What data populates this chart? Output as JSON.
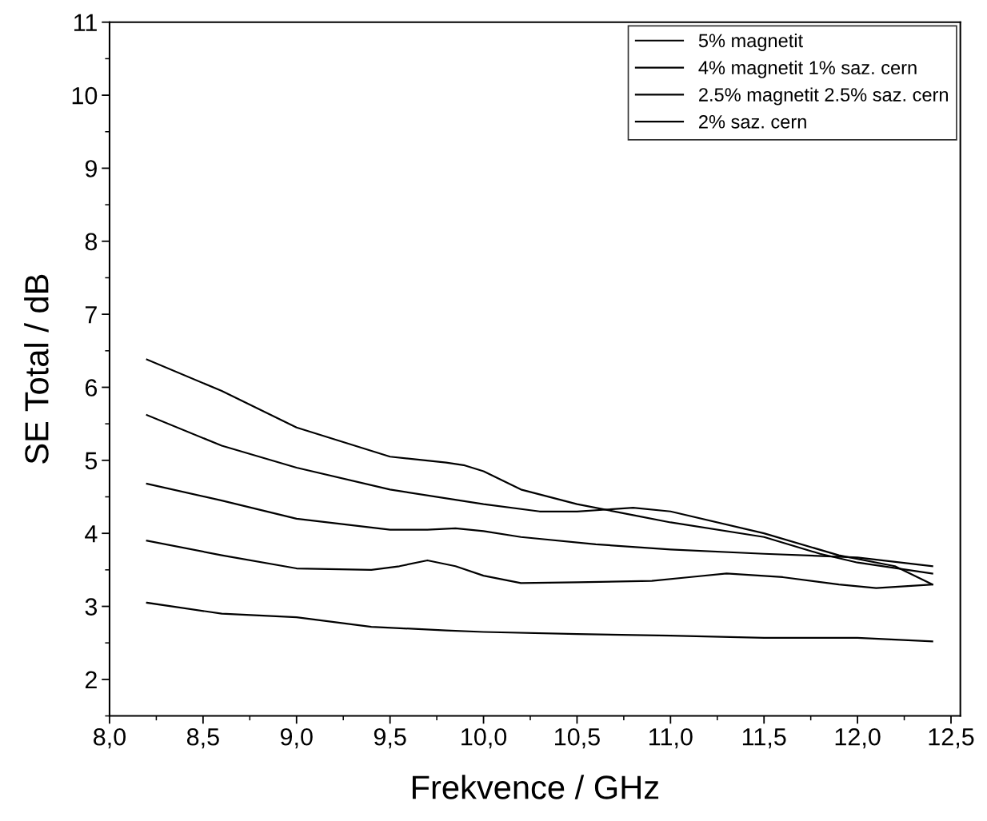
{
  "chart_data": {
    "type": "line",
    "xlabel": "Frekvence / GHz",
    "ylabel": "SE Total / dB",
    "xlim": [
      8.0,
      12.55
    ],
    "ylim": [
      1.5,
      11
    ],
    "xticks": [
      {
        "value": 8.0,
        "label": "8,0"
      },
      {
        "value": 8.5,
        "label": "8,5"
      },
      {
        "value": 9.0,
        "label": "9,0"
      },
      {
        "value": 9.5,
        "label": "9,5"
      },
      {
        "value": 10.0,
        "label": "10,0"
      },
      {
        "value": 10.5,
        "label": "10,5"
      },
      {
        "value": 11.0,
        "label": "11,0"
      },
      {
        "value": 11.5,
        "label": "11,5"
      },
      {
        "value": 12.0,
        "label": "12,0"
      },
      {
        "value": 12.5,
        "label": "12,5"
      }
    ],
    "yticks": [
      2,
      3,
      4,
      5,
      6,
      7,
      8,
      9,
      10,
      11
    ],
    "grid": false,
    "legend": "top right",
    "marker": "none",
    "line_style": "solid",
    "series": [
      {
        "color": "#000000",
        "x": [
          8.2,
          8.6,
          9.0,
          9.4,
          9.8,
          10.0,
          10.5,
          11.0,
          11.5,
          12.0,
          12.4
        ],
        "values": [
          3.05,
          2.9,
          2.85,
          2.72,
          2.67,
          2.65,
          2.62,
          2.6,
          2.57,
          2.57,
          2.52
        ]
      },
      {
        "name": "5% magnetit",
        "color": "#000000",
        "x": [
          8.2,
          8.6,
          9.0,
          9.5,
          9.8,
          9.9,
          10.0,
          10.2,
          10.5,
          10.8,
          11.0,
          11.5,
          11.8,
          12.0,
          12.4
        ],
        "values": [
          6.38,
          5.95,
          5.45,
          5.05,
          4.97,
          4.93,
          4.85,
          4.6,
          4.4,
          4.25,
          4.15,
          3.95,
          3.72,
          3.6,
          3.45
        ]
      },
      {
        "name": "4% magnetit 1% saz. cern",
        "color": "#000000",
        "x": [
          8.2,
          8.6,
          9.0,
          9.5,
          10.0,
          10.3,
          10.5,
          10.8,
          11.0,
          11.5,
          11.9,
          12.2,
          12.4
        ],
        "values": [
          5.62,
          5.2,
          4.9,
          4.6,
          4.4,
          4.3,
          4.3,
          4.35,
          4.3,
          4.0,
          3.7,
          3.55,
          3.3
        ]
      },
      {
        "name": "2.5% magnetit 2.5% saz. cern",
        "color": "#000000",
        "x": [
          8.2,
          8.6,
          9.0,
          9.5,
          9.7,
          9.85,
          10.0,
          10.2,
          10.6,
          11.0,
          11.5,
          12.0,
          12.4
        ],
        "values": [
          4.68,
          4.45,
          4.2,
          4.05,
          4.05,
          4.07,
          4.03,
          3.95,
          3.85,
          3.78,
          3.72,
          3.67,
          3.55
        ]
      },
      {
        "name": "2% saz. cern",
        "color": "#000000",
        "x": [
          8.2,
          8.6,
          9.0,
          9.4,
          9.55,
          9.7,
          9.85,
          10.0,
          10.2,
          10.5,
          10.9,
          11.1,
          11.3,
          11.6,
          11.9,
          12.1,
          12.4
        ],
        "values": [
          3.9,
          3.7,
          3.52,
          3.5,
          3.55,
          3.63,
          3.55,
          3.42,
          3.32,
          3.33,
          3.35,
          3.4,
          3.45,
          3.4,
          3.3,
          3.25,
          3.3
        ]
      }
    ]
  }
}
